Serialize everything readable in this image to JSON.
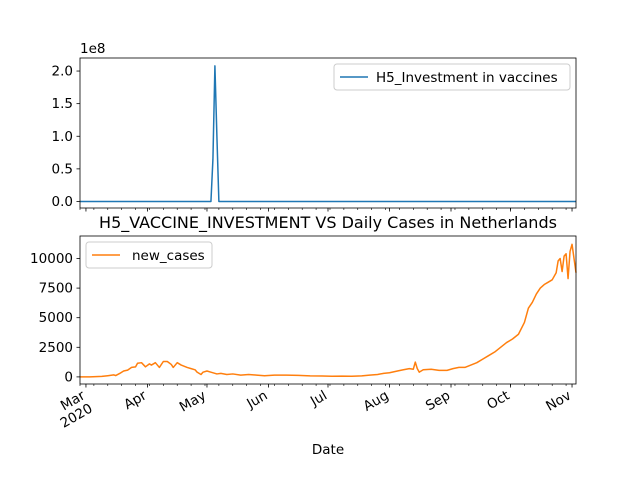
{
  "chart_data": [
    {
      "type": "line",
      "title": "",
      "xlabel": "",
      "ylabel": "",
      "y_scale_label": "1e8",
      "ylim": [
        -0.1,
        2.2
      ],
      "yticks": [
        0.0,
        0.5,
        1.0,
        1.5,
        2.0
      ],
      "ytick_labels": [
        "0.0",
        "0.5",
        "1.0",
        "1.5",
        "2.0"
      ],
      "y_multiplier": 100000000,
      "grid": false,
      "legend_position": "upper right",
      "series": [
        {
          "name": "H5_Investment in vaccines",
          "color": "#1f77b4",
          "points": [
            [
              "2020-02-27",
              0
            ],
            [
              "2020-05-03",
              0
            ],
            [
              "2020-05-04",
              0.65
            ],
            [
              "2020-05-05",
              2.08
            ],
            [
              "2020-05-06",
              1.0
            ],
            [
              "2020-05-07",
              0
            ],
            [
              "2020-11-03",
              0
            ]
          ]
        }
      ]
    },
    {
      "type": "line",
      "title": "H5_VACCINE_INVESTMENT VS Daily Cases in Netherlands",
      "xlabel": "Date",
      "ylabel": "",
      "ylim": [
        -600,
        11900
      ],
      "yticks": [
        0,
        2500,
        5000,
        7500,
        10000
      ],
      "ytick_labels": [
        "0",
        "2500",
        "5000",
        "7500",
        "10000"
      ],
      "xlim": [
        "2020-02-27",
        "2020-11-03"
      ],
      "xticks": [
        "2020-03-01",
        "2020-04-01",
        "2020-05-01",
        "2020-06-01",
        "2020-07-01",
        "2020-08-01",
        "2020-09-01",
        "2020-10-01",
        "2020-11-01"
      ],
      "xtick_labels": [
        "Mar\n2020",
        "Apr",
        "May",
        "Jun",
        "Jul",
        "Aug",
        "Sep",
        "Oct",
        "Nov"
      ],
      "grid": false,
      "legend_position": "upper left",
      "series": [
        {
          "name": "new_cases",
          "color": "#ff7f0e",
          "points": [
            [
              "2020-02-27",
              1
            ],
            [
              "2020-03-03",
              5
            ],
            [
              "2020-03-06",
              20
            ],
            [
              "2020-03-09",
              40
            ],
            [
              "2020-03-12",
              100
            ],
            [
              "2020-03-15",
              170
            ],
            [
              "2020-03-16",
              110
            ],
            [
              "2020-03-18",
              290
            ],
            [
              "2020-03-20",
              500
            ],
            [
              "2020-03-22",
              570
            ],
            [
              "2020-03-24",
              800
            ],
            [
              "2020-03-26",
              850
            ],
            [
              "2020-03-27",
              1150
            ],
            [
              "2020-03-29",
              1200
            ],
            [
              "2020-03-31",
              850
            ],
            [
              "2020-04-02",
              1100
            ],
            [
              "2020-04-03",
              1000
            ],
            [
              "2020-04-05",
              1200
            ],
            [
              "2020-04-07",
              800
            ],
            [
              "2020-04-09",
              1300
            ],
            [
              "2020-04-11",
              1300
            ],
            [
              "2020-04-13",
              1050
            ],
            [
              "2020-04-14",
              800
            ],
            [
              "2020-04-16",
              1200
            ],
            [
              "2020-04-18",
              1000
            ],
            [
              "2020-04-21",
              800
            ],
            [
              "2020-04-23",
              700
            ],
            [
              "2020-04-25",
              600
            ],
            [
              "2020-04-26",
              400
            ],
            [
              "2020-04-28",
              200
            ],
            [
              "2020-04-29",
              400
            ],
            [
              "2020-05-01",
              500
            ],
            [
              "2020-05-03",
              400
            ],
            [
              "2020-05-06",
              250
            ],
            [
              "2020-05-08",
              300
            ],
            [
              "2020-05-11",
              200
            ],
            [
              "2020-05-14",
              250
            ],
            [
              "2020-05-18",
              150
            ],
            [
              "2020-05-22",
              200
            ],
            [
              "2020-05-26",
              150
            ],
            [
              "2020-05-30",
              100
            ],
            [
              "2020-06-04",
              150
            ],
            [
              "2020-06-10",
              150
            ],
            [
              "2020-06-16",
              130
            ],
            [
              "2020-06-22",
              90
            ],
            [
              "2020-06-28",
              80
            ],
            [
              "2020-07-03",
              60
            ],
            [
              "2020-07-08",
              70
            ],
            [
              "2020-07-13",
              60
            ],
            [
              "2020-07-18",
              90
            ],
            [
              "2020-07-22",
              150
            ],
            [
              "2020-07-26",
              200
            ],
            [
              "2020-07-29",
              300
            ],
            [
              "2020-08-01",
              350
            ],
            [
              "2020-08-05",
              500
            ],
            [
              "2020-08-08",
              600
            ],
            [
              "2020-08-11",
              700
            ],
            [
              "2020-08-13",
              650
            ],
            [
              "2020-08-14",
              1250
            ],
            [
              "2020-08-15",
              700
            ],
            [
              "2020-08-16",
              400
            ],
            [
              "2020-08-18",
              600
            ],
            [
              "2020-08-22",
              650
            ],
            [
              "2020-08-26",
              550
            ],
            [
              "2020-08-30",
              550
            ],
            [
              "2020-09-02",
              700
            ],
            [
              "2020-09-05",
              800
            ],
            [
              "2020-09-08",
              800
            ],
            [
              "2020-09-11",
              1000
            ],
            [
              "2020-09-14",
              1200
            ],
            [
              "2020-09-17",
              1500
            ],
            [
              "2020-09-20",
              1800
            ],
            [
              "2020-09-23",
              2100
            ],
            [
              "2020-09-26",
              2500
            ],
            [
              "2020-09-29",
              2900
            ],
            [
              "2020-10-02",
              3200
            ],
            [
              "2020-10-05",
              3600
            ],
            [
              "2020-10-08",
              4600
            ],
            [
              "2020-10-10",
              5800
            ],
            [
              "2020-10-12",
              6300
            ],
            [
              "2020-10-14",
              7000
            ],
            [
              "2020-10-16",
              7500
            ],
            [
              "2020-10-18",
              7800
            ],
            [
              "2020-10-20",
              8000
            ],
            [
              "2020-10-22",
              8200
            ],
            [
              "2020-10-24",
              8800
            ],
            [
              "2020-10-25",
              9800
            ],
            [
              "2020-10-26",
              10000
            ],
            [
              "2020-10-27",
              8900
            ],
            [
              "2020-10-28",
              10200
            ],
            [
              "2020-10-29",
              10400
            ],
            [
              "2020-10-30",
              8300
            ],
            [
              "2020-10-31",
              10600
            ],
            [
              "2020-11-01",
              11200
            ],
            [
              "2020-11-02",
              10000
            ],
            [
              "2020-11-03",
              8800
            ]
          ]
        }
      ]
    }
  ]
}
